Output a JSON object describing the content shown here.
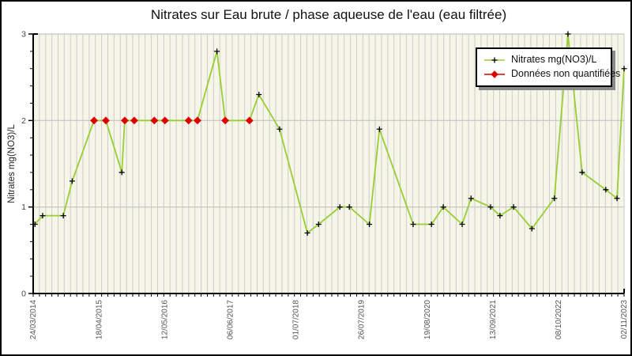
{
  "chart_data": {
    "type": "line",
    "title": "Nitrates sur Eau brute / phase aqueuse de l'eau (eau filtrée)",
    "ylabel": "Nitrates mg(NO3)/L",
    "xlabel": "",
    "ylim": [
      0,
      3
    ],
    "yticks": [
      0,
      1,
      2,
      3
    ],
    "y_minor_step": 0.2,
    "grid": {
      "horizontal_lines_at": [
        1,
        2,
        3
      ],
      "vertical_stripe_count": 95,
      "visible": true
    },
    "x_tick_labels": [
      "24/03/2014",
      "18/04/2015",
      "12/05/2016",
      "06/06/2017",
      "01/07/2018",
      "26/07/2019",
      "19/08/2020",
      "13/09/2021",
      "08/10/2022",
      "02/11/2023"
    ],
    "legend": {
      "position": "top-right",
      "entries": [
        {
          "label": "Nitrates mg(NO3)/L",
          "line_color": "#9acd32",
          "marker": "plus",
          "marker_color": "#000000"
        },
        {
          "label": "Données non quantifiées",
          "line_color": "#dd0000",
          "marker": "diamond",
          "marker_color": "#dd0000"
        }
      ]
    },
    "colors": {
      "line": "#9acd32",
      "quantified_marker": "#000000",
      "non_quantified_marker": "#dd0000",
      "plot_background": "#f5f5e8",
      "stripe_line": "#cccccc",
      "h_gridline": "#c4c4c4",
      "axis": "#000000",
      "tick_label": "#555555"
    },
    "series": [
      {
        "name": "Nitrates mg(NO3)/L",
        "points": [
          {
            "x_frac": 0.003,
            "value": 0.8,
            "quantified": true
          },
          {
            "x_frac": 0.016,
            "value": 0.9,
            "quantified": true
          },
          {
            "x_frac": 0.051,
            "value": 0.9,
            "quantified": true
          },
          {
            "x_frac": 0.066,
            "value": 1.3,
            "quantified": true
          },
          {
            "x_frac": 0.103,
            "value": 2,
            "quantified": false
          },
          {
            "x_frac": 0.123,
            "value": 2,
            "quantified": false
          },
          {
            "x_frac": 0.15,
            "value": 1.4,
            "quantified": true
          },
          {
            "x_frac": 0.155,
            "value": 2,
            "quantified": false
          },
          {
            "x_frac": 0.171,
            "value": 2,
            "quantified": false
          },
          {
            "x_frac": 0.205,
            "value": 2,
            "quantified": false
          },
          {
            "x_frac": 0.223,
            "value": 2,
            "quantified": false
          },
          {
            "x_frac": 0.263,
            "value": 2,
            "quantified": false
          },
          {
            "x_frac": 0.278,
            "value": 2,
            "quantified": false
          },
          {
            "x_frac": 0.311,
            "value": 2.8,
            "quantified": true
          },
          {
            "x_frac": 0.325,
            "value": 2,
            "quantified": false
          },
          {
            "x_frac": 0.366,
            "value": 2,
            "quantified": false
          },
          {
            "x_frac": 0.382,
            "value": 2.3,
            "quantified": true
          },
          {
            "x_frac": 0.417,
            "value": 1.9,
            "quantified": true
          },
          {
            "x_frac": 0.464,
            "value": 0.7,
            "quantified": true
          },
          {
            "x_frac": 0.483,
            "value": 0.8,
            "quantified": true
          },
          {
            "x_frac": 0.519,
            "value": 1,
            "quantified": true
          },
          {
            "x_frac": 0.535,
            "value": 1,
            "quantified": true
          },
          {
            "x_frac": 0.569,
            "value": 0.8,
            "quantified": true
          },
          {
            "x_frac": 0.586,
            "value": 1.9,
            "quantified": true
          },
          {
            "x_frac": 0.643,
            "value": 0.8,
            "quantified": true
          },
          {
            "x_frac": 0.674,
            "value": 0.8,
            "quantified": true
          },
          {
            "x_frac": 0.694,
            "value": 1,
            "quantified": true
          },
          {
            "x_frac": 0.726,
            "value": 0.8,
            "quantified": true
          },
          {
            "x_frac": 0.741,
            "value": 1.1,
            "quantified": true
          },
          {
            "x_frac": 0.774,
            "value": 1,
            "quantified": true
          },
          {
            "x_frac": 0.79,
            "value": 0.9,
            "quantified": true
          },
          {
            "x_frac": 0.813,
            "value": 1,
            "quantified": true
          },
          {
            "x_frac": 0.844,
            "value": 0.75,
            "quantified": true
          },
          {
            "x_frac": 0.882,
            "value": 1.1,
            "quantified": true
          },
          {
            "x_frac": 0.905,
            "value": 3,
            "quantified": true
          },
          {
            "x_frac": 0.929,
            "value": 1.4,
            "quantified": true
          },
          {
            "x_frac": 0.969,
            "value": 1.2,
            "quantified": true
          },
          {
            "x_frac": 0.988,
            "value": 1.1,
            "quantified": true
          },
          {
            "x_frac": 1.0,
            "value": 2.6,
            "quantified": true
          }
        ]
      }
    ]
  }
}
